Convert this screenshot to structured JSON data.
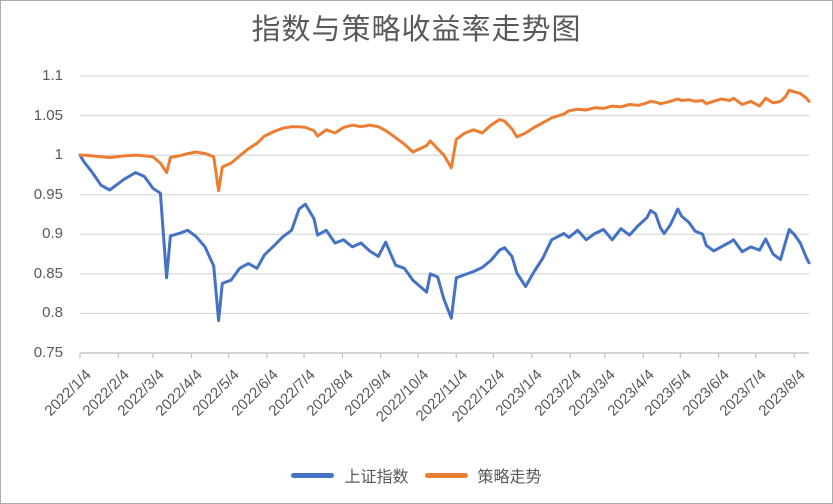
{
  "chart_data": {
    "type": "line",
    "title": "指数与策略收益率走势图",
    "xlabel": "",
    "ylabel": "",
    "ylim": [
      0.75,
      1.1
    ],
    "y_ticks": [
      1.1,
      1.05,
      1,
      0.95,
      0.9,
      0.85,
      0.8,
      0.75
    ],
    "y_tick_labels": [
      "1.1",
      "1.05",
      "1",
      "0.95",
      "0.9",
      "0.85",
      "0.8",
      "0.75"
    ],
    "x_tick_labels": [
      "2022/1/4",
      "2022/2/4",
      "2022/3/4",
      "2022/4/4",
      "2022/5/4",
      "2022/6/4",
      "2022/7/4",
      "2022/8/4",
      "2022/9/4",
      "2022/10/4",
      "2022/11/4",
      "2022/12/4",
      "2023/1/4",
      "2023/2/4",
      "2023/3/4",
      "2023/4/4",
      "2023/5/4",
      "2023/6/4",
      "2023/7/4",
      "2023/8/4"
    ],
    "grid": "horizontal",
    "legend_position": "bottom",
    "colors": {
      "grid": "#d9d9d9",
      "axis": "#bfbfbf",
      "text": "#595959"
    },
    "x_dates": [
      "2022/1/4",
      "2022/1/7",
      "2022/1/14",
      "2022/1/21",
      "2022/1/28",
      "2022/2/9",
      "2022/2/18",
      "2022/2/25",
      "2022/3/4",
      "2022/3/10",
      "2022/3/15",
      "2022/3/18",
      "2022/3/25",
      "2022/4/1",
      "2022/4/8",
      "2022/4/15",
      "2022/4/22",
      "2022/4/26",
      "2022/4/29",
      "2022/5/6",
      "2022/5/13",
      "2022/5/20",
      "2022/5/27",
      "2022/6/2",
      "2022/6/10",
      "2022/6/17",
      "2022/6/24",
      "2022/6/30",
      "2022/7/5",
      "2022/7/12",
      "2022/7/15",
      "2022/7/22",
      "2022/7/29",
      "2022/8/5",
      "2022/8/12",
      "2022/8/19",
      "2022/8/26",
      "2022/9/2",
      "2022/9/8",
      "2022/9/16",
      "2022/9/23",
      "2022/9/30",
      "2022/10/11",
      "2022/10/14",
      "2022/10/20",
      "2022/10/25",
      "2022/10/31",
      "2022/11/4",
      "2022/11/11",
      "2022/11/18",
      "2022/11/25",
      "2022/12/2",
      "2022/12/9",
      "2022/12/13",
      "2022/12/19",
      "2022/12/23",
      "2022/12/30",
      "2023/1/6",
      "2023/1/13",
      "2023/1/20",
      "2023/1/30",
      "2023/2/3",
      "2023/2/10",
      "2023/2/17",
      "2023/2/24",
      "2023/3/3",
      "2023/3/10",
      "2023/3/17",
      "2023/3/24",
      "2023/3/31",
      "2023/4/7",
      "2023/4/10",
      "2023/4/14",
      "2023/4/18",
      "2023/4/21",
      "2023/4/26",
      "2023/5/2",
      "2023/5/5",
      "2023/5/11",
      "2023/5/16",
      "2023/5/22",
      "2023/5/25",
      "2023/5/31",
      "2023/6/6",
      "2023/6/13",
      "2023/6/16",
      "2023/6/23",
      "2023/6/30",
      "2023/7/7",
      "2023/7/12",
      "2023/7/18",
      "2023/7/24",
      "2023/7/28",
      "2023/7/31",
      "2023/8/4",
      "2023/8/9",
      "2023/8/14",
      "2023/8/16"
    ],
    "series": [
      {
        "name": "上证指数",
        "color": "#4472c4",
        "values": [
          1.0,
          0.992,
          0.978,
          0.962,
          0.956,
          0.97,
          0.978,
          0.973,
          0.958,
          0.952,
          0.845,
          0.898,
          0.901,
          0.905,
          0.897,
          0.884,
          0.86,
          0.791,
          0.838,
          0.842,
          0.857,
          0.863,
          0.857,
          0.874,
          0.886,
          0.897,
          0.905,
          0.932,
          0.938,
          0.92,
          0.899,
          0.905,
          0.889,
          0.893,
          0.884,
          0.889,
          0.879,
          0.872,
          0.89,
          0.861,
          0.857,
          0.842,
          0.827,
          0.85,
          0.846,
          0.818,
          0.794,
          0.845,
          0.849,
          0.853,
          0.858,
          0.867,
          0.88,
          0.883,
          0.872,
          0.851,
          0.834,
          0.853,
          0.87,
          0.893,
          0.901,
          0.896,
          0.905,
          0.893,
          0.901,
          0.906,
          0.893,
          0.907,
          0.899,
          0.911,
          0.921,
          0.93,
          0.926,
          0.908,
          0.901,
          0.912,
          0.932,
          0.923,
          0.915,
          0.904,
          0.9,
          0.886,
          0.879,
          0.884,
          0.89,
          0.893,
          0.878,
          0.884,
          0.88,
          0.894,
          0.875,
          0.868,
          0.89,
          0.906,
          0.9,
          0.889,
          0.87,
          0.864
        ]
      },
      {
        "name": "策略走势",
        "color": "#ed7d31",
        "values": [
          1.0,
          1.0,
          0.999,
          0.998,
          0.997,
          0.999,
          1.0,
          0.999,
          0.998,
          0.99,
          0.978,
          0.997,
          0.999,
          1.002,
          1.004,
          1.002,
          0.998,
          0.955,
          0.985,
          0.99,
          0.999,
          1.008,
          1.015,
          1.024,
          1.03,
          1.034,
          1.036,
          1.036,
          1.035,
          1.031,
          1.024,
          1.032,
          1.028,
          1.035,
          1.038,
          1.036,
          1.038,
          1.036,
          1.031,
          1.022,
          1.014,
          1.004,
          1.012,
          1.018,
          1.008,
          1.0,
          0.984,
          1.02,
          1.028,
          1.032,
          1.028,
          1.038,
          1.045,
          1.043,
          1.033,
          1.023,
          1.028,
          1.035,
          1.041,
          1.047,
          1.052,
          1.056,
          1.058,
          1.057,
          1.06,
          1.059,
          1.062,
          1.061,
          1.064,
          1.063,
          1.066,
          1.068,
          1.067,
          1.065,
          1.066,
          1.068,
          1.071,
          1.069,
          1.07,
          1.068,
          1.069,
          1.065,
          1.068,
          1.071,
          1.069,
          1.072,
          1.064,
          1.068,
          1.062,
          1.072,
          1.066,
          1.068,
          1.074,
          1.082,
          1.08,
          1.078,
          1.072,
          1.068
        ]
      }
    ]
  }
}
